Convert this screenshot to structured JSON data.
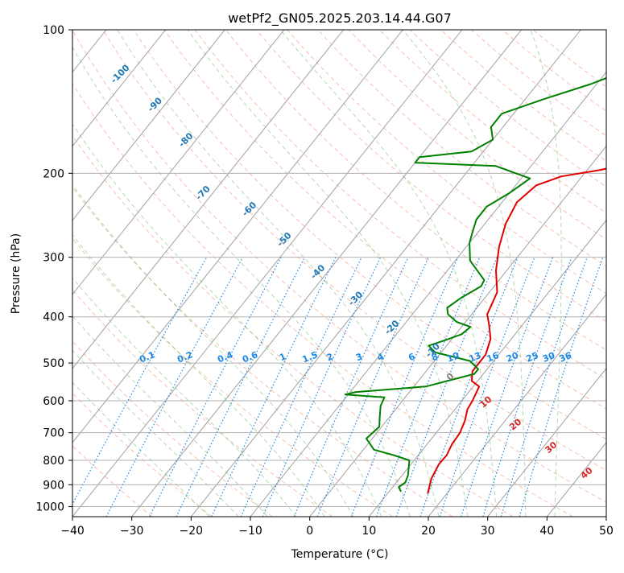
{
  "chart_data": {
    "type": "line",
    "chart_kind": "skew-T log-P diagram",
    "title": "wetPf2_GN05.2025.203.14.44.G07",
    "xlabel": "Temperature (°C)",
    "ylabel": "Pressure (hPa)",
    "xlim": [
      -40,
      50
    ],
    "ylim": [
      1050,
      100
    ],
    "y_scale": "log",
    "x_ticks": [
      -40,
      -30,
      -20,
      -10,
      0,
      10,
      20,
      30,
      40,
      50
    ],
    "x_tick_labels": [
      "−40",
      "−30",
      "−20",
      "−10",
      "0",
      "10",
      "20",
      "30",
      "40",
      "50"
    ],
    "y_ticks": [
      100,
      200,
      300,
      400,
      500,
      600,
      700,
      800,
      900,
      1000
    ],
    "y_tick_labels": [
      "100",
      "200",
      "300",
      "400",
      "500",
      "600",
      "700",
      "800",
      "900",
      "1000"
    ],
    "grid": true,
    "isotherms": {
      "values": [
        -100,
        -90,
        -80,
        -70,
        -60,
        -50,
        -40,
        -30,
        -20,
        -10
      ],
      "labels": [
        "-100",
        "-90",
        "-80",
        "-70",
        "-60",
        "-50",
        "-40",
        "-30",
        "-20",
        "-10"
      ],
      "color": "#1f77b4"
    },
    "mixing_ratio": {
      "values": [
        0.1,
        0.2,
        0.4,
        0.6,
        1,
        1.5,
        2,
        3,
        4,
        6,
        8,
        10,
        13,
        16,
        20,
        25,
        30,
        36
      ],
      "labels": [
        "0.1",
        "0.2",
        "0.4",
        "0.6",
        "1",
        "1.5",
        "2",
        "3",
        "4",
        "6",
        "8",
        "10",
        "13",
        "16",
        "20",
        "25",
        "30",
        "36"
      ],
      "label_pressure": 500,
      "color": "#1e88e5"
    },
    "warm_isotherms": {
      "values": [
        0,
        10,
        20,
        30,
        40
      ],
      "labels": [
        "0",
        "10",
        "20",
        "30",
        "40"
      ],
      "colors": [
        "#808080",
        "#d62728",
        "#d62728",
        "#d62728",
        "#d62728"
      ]
    },
    "series": [
      {
        "name": "",
        "role": "temperature",
        "color": "#e00000",
        "points": [
          [
            16.8,
            940
          ],
          [
            15.4,
            875
          ],
          [
            14.7,
            815
          ],
          [
            14.8,
            780
          ],
          [
            14.2,
            740
          ],
          [
            14.0,
            700
          ],
          [
            13.2,
            660
          ],
          [
            12.1,
            625
          ],
          [
            11.8,
            600
          ],
          [
            11.0,
            560
          ],
          [
            9.0,
            545
          ],
          [
            7.8,
            520
          ],
          [
            7.8,
            480
          ],
          [
            6.5,
            445
          ],
          [
            4.3,
            415
          ],
          [
            2.6,
            395
          ],
          [
            2.0,
            375
          ],
          [
            1.3,
            355
          ],
          [
            -1.8,
            320
          ],
          [
            -4.5,
            285
          ],
          [
            -6.5,
            255
          ],
          [
            -7.5,
            230
          ],
          [
            -6.5,
            212
          ],
          [
            -3.5,
            203
          ],
          [
            2.0,
            197
          ],
          [
            5.6,
            192
          ],
          [
            9.0,
            180
          ],
          [
            10.6,
            165
          ],
          [
            12.1,
            145
          ],
          [
            14.0,
            130
          ],
          [
            16.4,
            117
          ],
          [
            20.5,
            105
          ],
          [
            24.8,
            100
          ]
        ]
      },
      {
        "name": "",
        "role": "dewpoint",
        "color": "#008000",
        "points": [
          [
            12.0,
            930
          ],
          [
            11.0,
            910
          ],
          [
            11.5,
            890
          ],
          [
            11.0,
            860
          ],
          [
            9.2,
            800
          ],
          [
            5.8,
            780
          ],
          [
            1.8,
            760
          ],
          [
            -1.0,
            720
          ],
          [
            -0.4,
            680
          ],
          [
            -1.6,
            650
          ],
          [
            -3.0,
            615
          ],
          [
            -3.5,
            590
          ],
          [
            -10.5,
            582
          ],
          [
            -9.0,
            575
          ],
          [
            2.0,
            560
          ],
          [
            8.5,
            527
          ],
          [
            8.5,
            515
          ],
          [
            6.0,
            495
          ],
          [
            -1.0,
            475
          ],
          [
            -3.0,
            460
          ],
          [
            -1.0,
            448
          ],
          [
            1.0,
            435
          ],
          [
            1.5,
            420
          ],
          [
            -1.5,
            410
          ],
          [
            -4.0,
            395
          ],
          [
            -5.0,
            383
          ],
          [
            -4.0,
            365
          ],
          [
            -2.2,
            345
          ],
          [
            -2.5,
            335
          ],
          [
            -7.5,
            305
          ],
          [
            -10.0,
            280
          ],
          [
            -11.0,
            265
          ],
          [
            -12.0,
            250
          ],
          [
            -12.0,
            235
          ],
          [
            -10.0,
            220
          ],
          [
            -8.5,
            205
          ],
          [
            -16.0,
            193
          ],
          [
            -30.0,
            190
          ],
          [
            -30.0,
            185
          ],
          [
            -22.0,
            180
          ],
          [
            -20.0,
            170
          ],
          [
            -22.0,
            160
          ],
          [
            -22.0,
            150
          ],
          [
            -17.0,
            140
          ],
          [
            -11.0,
            130
          ],
          [
            -6.0,
            120
          ],
          [
            -3.5,
            110
          ],
          [
            -3.0,
            100
          ]
        ]
      }
    ]
  }
}
